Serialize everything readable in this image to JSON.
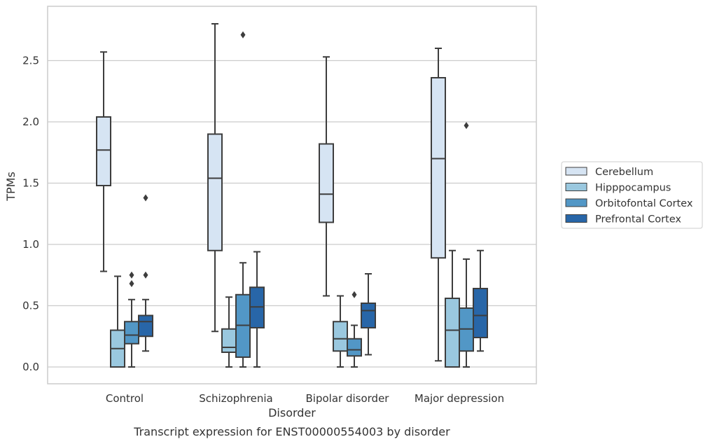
{
  "chart_data": {
    "type": "boxplot",
    "xlabel": "Disorder",
    "ylabel": "TPMs",
    "caption": "Transcript expression for ENST00000554003 by disorder",
    "ylim": [
      -0.13,
      2.95
    ],
    "yticks": [
      "0.0",
      "0.5",
      "1.0",
      "1.5",
      "2.0",
      "2.5"
    ],
    "grid": "horizontal",
    "legend_position": "right",
    "categories": [
      "Control",
      "Schizophrenia",
      "Bipolar disorder",
      "Major depression"
    ],
    "series": [
      {
        "name": "Cerebellum",
        "color": "#d6e4f3",
        "boxes": [
          {
            "min": 0.78,
            "q1": 1.48,
            "median": 1.77,
            "q3": 2.04,
            "max": 2.57,
            "outliers": []
          },
          {
            "min": 0.29,
            "q1": 0.95,
            "median": 1.54,
            "q3": 1.9,
            "max": 2.8,
            "outliers": []
          },
          {
            "min": 0.58,
            "q1": 1.18,
            "median": 1.41,
            "q3": 1.82,
            "max": 2.53,
            "outliers": []
          },
          {
            "min": 0.05,
            "q1": 0.89,
            "median": 1.7,
            "q3": 2.36,
            "max": 2.6,
            "outliers": []
          }
        ]
      },
      {
        "name": "Hipppocampus",
        "color": "#9ac8df",
        "boxes": [
          {
            "min": 0.0,
            "q1": 0.0,
            "median": 0.15,
            "q3": 0.3,
            "max": 0.74,
            "outliers": []
          },
          {
            "min": 0.0,
            "q1": 0.12,
            "median": 0.16,
            "q3": 0.31,
            "max": 0.57,
            "outliers": []
          },
          {
            "min": 0.0,
            "q1": 0.13,
            "median": 0.23,
            "q3": 0.37,
            "max": 0.58,
            "outliers": []
          },
          {
            "min": 0.0,
            "q1": 0.0,
            "median": 0.3,
            "q3": 0.56,
            "max": 0.95,
            "outliers": []
          }
        ]
      },
      {
        "name": "Orbitofontal Cortex",
        "color": "#5297c6",
        "boxes": [
          {
            "min": 0.0,
            "q1": 0.19,
            "median": 0.26,
            "q3": 0.37,
            "max": 0.55,
            "outliers": [
              0.68,
              0.75
            ]
          },
          {
            "min": 0.0,
            "q1": 0.08,
            "median": 0.34,
            "q3": 0.59,
            "max": 0.85,
            "outliers": [
              2.71
            ]
          },
          {
            "min": 0.0,
            "q1": 0.09,
            "median": 0.14,
            "q3": 0.23,
            "max": 0.34,
            "outliers": [
              0.59
            ]
          },
          {
            "min": 0.0,
            "q1": 0.13,
            "median": 0.31,
            "q3": 0.48,
            "max": 0.88,
            "outliers": [
              1.97
            ]
          }
        ]
      },
      {
        "name": "Prefrontal Cortex",
        "color": "#2866a8",
        "boxes": [
          {
            "min": 0.13,
            "q1": 0.25,
            "median": 0.37,
            "q3": 0.42,
            "max": 0.55,
            "outliers": [
              0.75,
              1.38
            ]
          },
          {
            "min": 0.0,
            "q1": 0.32,
            "median": 0.49,
            "q3": 0.65,
            "max": 0.94,
            "outliers": []
          },
          {
            "min": 0.1,
            "q1": 0.32,
            "median": 0.46,
            "q3": 0.52,
            "max": 0.76,
            "outliers": []
          },
          {
            "min": 0.13,
            "q1": 0.24,
            "median": 0.42,
            "q3": 0.64,
            "max": 0.95,
            "outliers": []
          }
        ]
      }
    ]
  }
}
